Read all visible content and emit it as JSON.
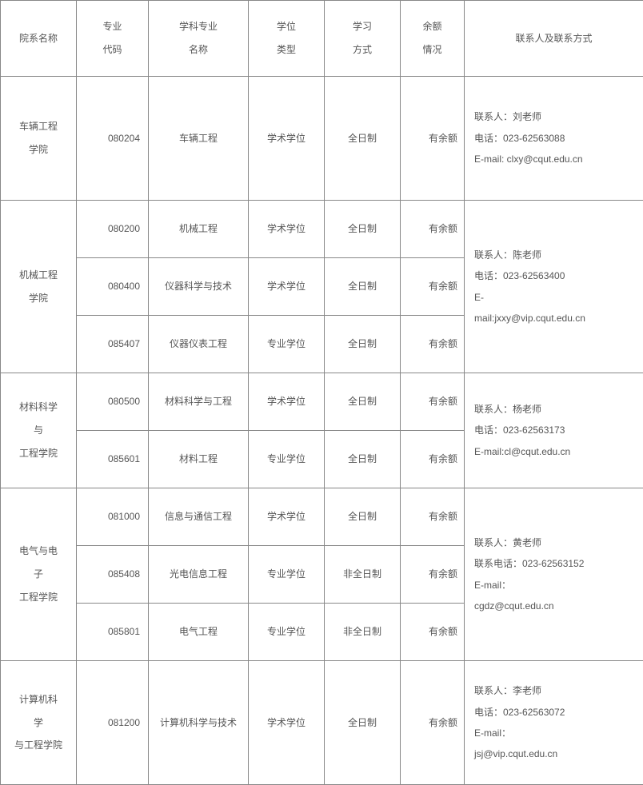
{
  "columns": {
    "dept": "院系名称",
    "code": "专业\n代码",
    "name": "学科专业\n名称",
    "degree": "学位\n类型",
    "mode": "学习\n方式",
    "quota": "余额\n情况",
    "contact": "联系人及联系方式"
  },
  "groups": [
    {
      "dept": "车辆工程\n学院",
      "contact": "联系人：刘老师\n电话：023-62563088\nE-mail: clxy@cqut.edu.cn",
      "rows": [
        {
          "code": "080204",
          "name": "车辆工程",
          "degree": "学术学位",
          "mode": "全日制",
          "quota": "有余额"
        }
      ]
    },
    {
      "dept": "机械工程\n学院",
      "contact": "联系人：陈老师\n电话：023-62563400\nE-\nmail:jxxy@vip.cqut.edu.cn",
      "rows": [
        {
          "code": "080200",
          "name": "机械工程",
          "degree": "学术学位",
          "mode": "全日制",
          "quota": "有余额"
        },
        {
          "code": "080400",
          "name": "仪器科学与技术",
          "degree": "学术学位",
          "mode": "全日制",
          "quota": "有余额"
        },
        {
          "code": "085407",
          "name": "仪器仪表工程",
          "degree": "专业学位",
          "mode": "全日制",
          "quota": "有余额"
        }
      ]
    },
    {
      "dept": "材料科学\n与\n工程学院",
      "contact": "联系人：杨老师\n电话：023-62563173\nE-mail:cl@cqut.edu.cn",
      "rows": [
        {
          "code": "080500",
          "name": "材料科学与工程",
          "degree": "学术学位",
          "mode": "全日制",
          "quota": "有余额"
        },
        {
          "code": "085601",
          "name": "材料工程",
          "degree": "专业学位",
          "mode": "全日制",
          "quota": "有余额"
        }
      ]
    },
    {
      "dept": "电气与电\n子\n工程学院",
      "contact": "联系人：黄老师\n联系电话：023-62563152\nE-mail：\ncgdz@cqut.edu.cn",
      "rows": [
        {
          "code": "081000",
          "name": "信息与通信工程",
          "degree": "学术学位",
          "mode": "全日制",
          "quota": "有余额"
        },
        {
          "code": "085408",
          "name": "光电信息工程",
          "degree": "专业学位",
          "mode": "非全日制",
          "quota": "有余额"
        },
        {
          "code": "085801",
          "name": "电气工程",
          "degree": "专业学位",
          "mode": "非全日制",
          "quota": "有余额"
        }
      ]
    },
    {
      "dept": "计算机科\n学\n与工程学院",
      "contact": "联系人：李老师\n电话：023-62563072\nE-mail：\njsj@vip.cqut.edu.cn",
      "rows": [
        {
          "code": "081200",
          "name": "计算机科学与技术",
          "degree": "学术学位",
          "mode": "全日制",
          "quota": "有余额"
        }
      ]
    }
  ],
  "row_heights": {
    "header": 95,
    "single": 155,
    "multi": 72
  }
}
